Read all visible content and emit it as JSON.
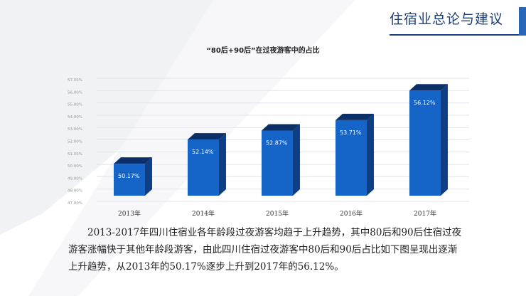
{
  "header": {
    "title": "住宿业总论与建议"
  },
  "caption": "2013-2017年四川住宿业各年龄段过夜游客均趋于上升趋势，其中80后和90后住宿过夜游客涨幅快于其他年龄段游客，由此四川住宿过夜游客中80后和90后占比如下图呈现出逐渐上升趋势，从2013年的50.17%逐步上升到2017年的56.12%。",
  "colors": {
    "bar_front": "#1565c8",
    "bar_side": "#0d3f86",
    "bar_top": "#0b2f66",
    "accent": "#1a3f7a"
  },
  "chart_data": {
    "type": "bar",
    "title": "“80后+90后”在过夜游客中的占比",
    "categories": [
      "2013年",
      "2014年",
      "2015年",
      "2016年",
      "2017年"
    ],
    "values": [
      50.17,
      52.14,
      52.87,
      53.71,
      56.12
    ],
    "value_labels": [
      "50.17%",
      "52.14%",
      "52.87%",
      "53.71%",
      "56.12%"
    ],
    "ylim": [
      47,
      57
    ],
    "yticks": [
      47,
      48,
      49,
      50,
      51,
      52,
      53,
      54,
      55,
      56,
      57
    ],
    "ytick_labels": [
      "47.00%",
      "48.00%",
      "49.00%",
      "50.00%",
      "51.00%",
      "52.00%",
      "53.00%",
      "54.00%",
      "55.00%",
      "56.00%",
      "57.00%"
    ],
    "grid": true,
    "xlabel": "",
    "ylabel": ""
  }
}
